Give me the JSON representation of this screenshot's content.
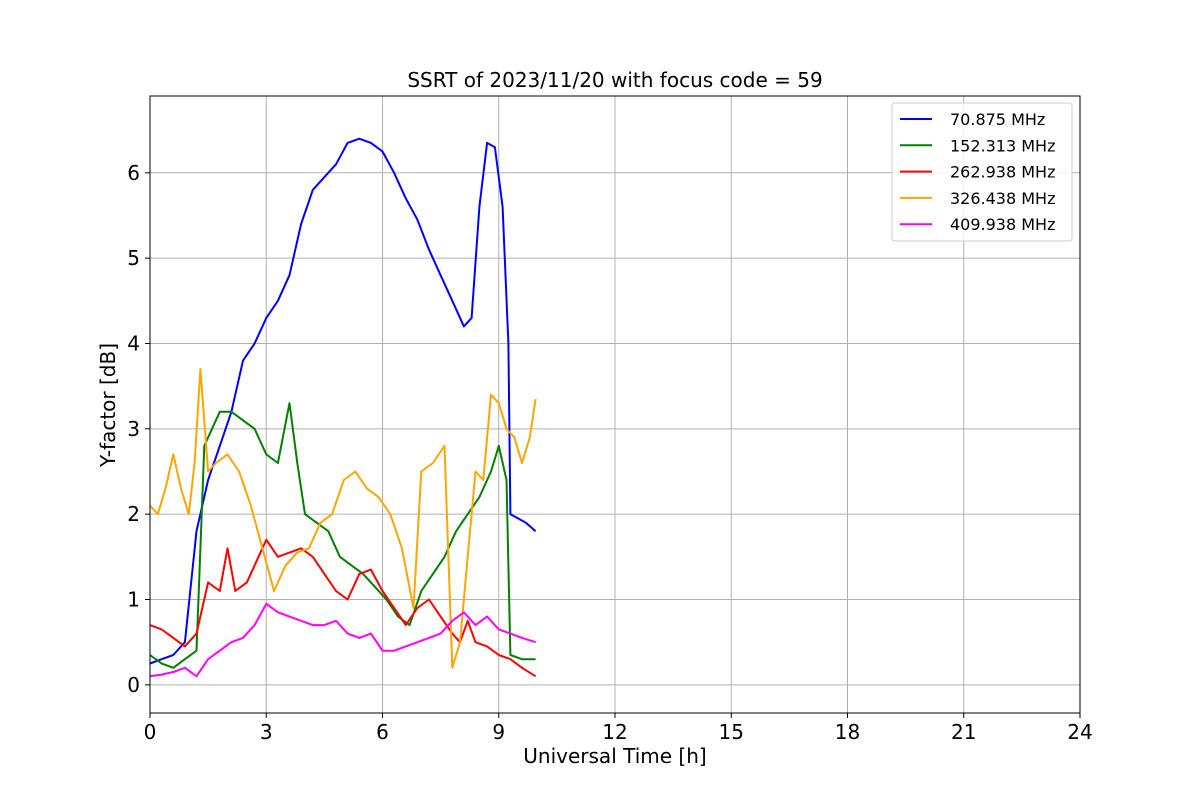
{
  "chart_data": {
    "type": "line",
    "title": "SSRT of 2023/11/20 with focus code = 59",
    "xlabel": "Universal Time [h]",
    "ylabel": "Y-factor [dB]",
    "xlim": [
      0,
      24
    ],
    "ylim": [
      -0.33,
      6.9
    ],
    "xticks": [
      0,
      3,
      6,
      9,
      12,
      15,
      18,
      21,
      24
    ],
    "yticks": [
      0,
      1,
      2,
      3,
      4,
      5,
      6
    ],
    "grid": true,
    "legend_position": "top-right",
    "series": [
      {
        "name": " 70.875 MHz",
        "color": "#0000ff",
        "x": [
          0,
          0.3,
          0.6,
          0.9,
          1.2,
          1.5,
          1.8,
          2.1,
          2.4,
          2.7,
          3.0,
          3.3,
          3.6,
          3.9,
          4.2,
          4.5,
          4.8,
          5.1,
          5.4,
          5.7,
          6.0,
          6.3,
          6.6,
          6.9,
          7.2,
          7.5,
          7.8,
          8.1,
          8.3,
          8.5,
          8.7,
          8.9,
          9.1,
          9.25,
          9.3,
          9.5,
          9.7,
          9.95
        ],
        "y": [
          0.25,
          0.3,
          0.35,
          0.5,
          1.8,
          2.4,
          2.8,
          3.2,
          3.8,
          4.0,
          4.3,
          4.5,
          4.8,
          5.4,
          5.8,
          5.95,
          6.1,
          6.35,
          6.4,
          6.35,
          6.25,
          6.0,
          5.7,
          5.45,
          5.1,
          4.8,
          4.5,
          4.2,
          4.3,
          5.6,
          6.35,
          6.3,
          5.6,
          4.0,
          2.0,
          1.95,
          1.9,
          1.8
        ]
      },
      {
        "name": "152.313 MHz",
        "color": "#008000",
        "x": [
          0,
          0.3,
          0.6,
          0.9,
          1.2,
          1.4,
          1.6,
          1.8,
          2.1,
          2.4,
          2.7,
          3.0,
          3.3,
          3.6,
          3.8,
          4.0,
          4.3,
          4.6,
          4.9,
          5.2,
          5.5,
          5.8,
          6.1,
          6.4,
          6.7,
          7.0,
          7.3,
          7.6,
          7.9,
          8.2,
          8.5,
          8.8,
          9.0,
          9.2,
          9.3,
          9.6,
          9.95
        ],
        "y": [
          0.35,
          0.25,
          0.2,
          0.3,
          0.4,
          2.8,
          3.0,
          3.2,
          3.2,
          3.1,
          3.0,
          2.7,
          2.6,
          3.3,
          2.6,
          2.0,
          1.9,
          1.8,
          1.5,
          1.4,
          1.3,
          1.15,
          1.0,
          0.8,
          0.7,
          1.1,
          1.3,
          1.5,
          1.8,
          2.0,
          2.2,
          2.5,
          2.8,
          2.4,
          0.35,
          0.3,
          0.3
        ]
      },
      {
        "name": "262.938 MHz",
        "color": "#ff0000",
        "x": [
          0,
          0.3,
          0.6,
          0.9,
          1.2,
          1.5,
          1.8,
          2.0,
          2.2,
          2.5,
          2.8,
          3.0,
          3.3,
          3.6,
          3.9,
          4.2,
          4.5,
          4.8,
          5.1,
          5.4,
          5.7,
          6.0,
          6.3,
          6.6,
          6.9,
          7.2,
          7.5,
          7.8,
          8.0,
          8.2,
          8.4,
          8.7,
          9.0,
          9.3,
          9.6,
          9.95
        ],
        "y": [
          0.7,
          0.65,
          0.55,
          0.45,
          0.6,
          1.2,
          1.1,
          1.6,
          1.1,
          1.2,
          1.5,
          1.7,
          1.5,
          1.55,
          1.6,
          1.5,
          1.3,
          1.1,
          1.0,
          1.3,
          1.35,
          1.1,
          0.9,
          0.7,
          0.9,
          1.0,
          0.8,
          0.6,
          0.5,
          0.75,
          0.5,
          0.45,
          0.35,
          0.3,
          0.2,
          0.1
        ]
      },
      {
        "name": "326.438 MHz",
        "color": "#ffa500",
        "x": [
          0,
          0.2,
          0.4,
          0.6,
          0.8,
          1.0,
          1.15,
          1.3,
          1.5,
          1.7,
          2.0,
          2.3,
          2.6,
          2.9,
          3.2,
          3.5,
          3.8,
          4.1,
          4.4,
          4.7,
          5.0,
          5.3,
          5.6,
          5.9,
          6.2,
          6.5,
          6.8,
          7.0,
          7.3,
          7.6,
          7.8,
          8.0,
          8.2,
          8.4,
          8.6,
          8.8,
          9.0,
          9.2,
          9.4,
          9.6,
          9.8,
          9.95
        ],
        "y": [
          2.1,
          2.0,
          2.3,
          2.7,
          2.3,
          2.0,
          2.6,
          3.7,
          2.5,
          2.6,
          2.7,
          2.5,
          2.1,
          1.6,
          1.1,
          1.4,
          1.55,
          1.6,
          1.9,
          2.0,
          2.4,
          2.5,
          2.3,
          2.2,
          2.0,
          1.6,
          0.9,
          2.5,
          2.6,
          2.8,
          0.2,
          0.5,
          1.5,
          2.5,
          2.4,
          3.4,
          3.3,
          3.0,
          2.9,
          2.6,
          2.9,
          3.35
        ]
      },
      {
        "name": "409.938 MHz",
        "color": "#ff00ff",
        "x": [
          0,
          0.3,
          0.6,
          0.9,
          1.2,
          1.5,
          1.8,
          2.1,
          2.4,
          2.7,
          3.0,
          3.3,
          3.6,
          3.9,
          4.2,
          4.5,
          4.8,
          5.1,
          5.4,
          5.7,
          6.0,
          6.3,
          6.6,
          6.9,
          7.2,
          7.5,
          7.8,
          8.1,
          8.4,
          8.7,
          9.0,
          9.3,
          9.6,
          9.95
        ],
        "y": [
          0.1,
          0.12,
          0.15,
          0.2,
          0.1,
          0.3,
          0.4,
          0.5,
          0.55,
          0.7,
          0.95,
          0.85,
          0.8,
          0.75,
          0.7,
          0.7,
          0.75,
          0.6,
          0.55,
          0.6,
          0.4,
          0.4,
          0.45,
          0.5,
          0.55,
          0.6,
          0.75,
          0.85,
          0.7,
          0.8,
          0.65,
          0.6,
          0.55,
          0.5
        ]
      }
    ]
  }
}
